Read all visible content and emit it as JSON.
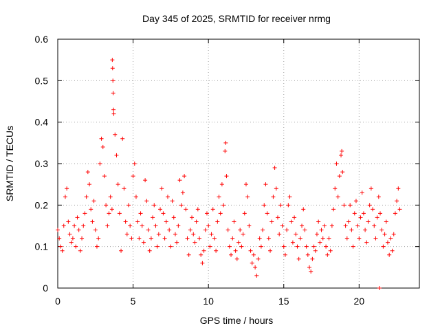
{
  "chart_data": {
    "type": "scatter",
    "title": "Day 345 of 2025, SRMTID for receiver nrmg",
    "xlabel": "GPS time / hours",
    "ylabel": "SRMTID / TECUs",
    "xlim": [
      0,
      24
    ],
    "ylim": [
      0,
      0.6
    ],
    "xticks": [
      0,
      5,
      10,
      15,
      20
    ],
    "yticks": [
      0,
      0.1,
      0.2,
      0.3,
      0.4,
      0.5,
      0.6
    ],
    "xtick_labels": [
      "0",
      "5",
      "10",
      "15",
      "20"
    ],
    "ytick_labels": [
      "0",
      "0.1",
      "0.2",
      "0.3",
      "0.4",
      "0.5",
      "0.6"
    ],
    "grid": true,
    "marker": "+",
    "color": "#ff0000",
    "series": [
      {
        "name": "SRMTID",
        "points": [
          [
            0.0,
            0.14
          ],
          [
            0.1,
            0.12
          ],
          [
            0.2,
            0.1
          ],
          [
            0.3,
            0.09
          ],
          [
            0.4,
            0.15
          ],
          [
            0.5,
            0.22
          ],
          [
            0.6,
            0.24
          ],
          [
            0.7,
            0.16
          ],
          [
            0.8,
            0.13
          ],
          [
            0.9,
            0.11
          ],
          [
            1.0,
            0.12
          ],
          [
            1.1,
            0.15
          ],
          [
            1.2,
            0.1
          ],
          [
            1.3,
            0.17
          ],
          [
            1.4,
            0.14
          ],
          [
            1.5,
            0.09
          ],
          [
            1.6,
            0.12
          ],
          [
            1.7,
            0.15
          ],
          [
            1.8,
            0.18
          ],
          [
            1.9,
            0.22
          ],
          [
            2.0,
            0.28
          ],
          [
            2.1,
            0.25
          ],
          [
            2.2,
            0.19
          ],
          [
            2.3,
            0.16
          ],
          [
            2.4,
            0.21
          ],
          [
            2.5,
            0.14
          ],
          [
            2.6,
            0.1
          ],
          [
            2.7,
            0.12
          ],
          [
            2.8,
            0.3
          ],
          [
            2.9,
            0.36
          ],
          [
            3.0,
            0.34
          ],
          [
            3.1,
            0.27
          ],
          [
            3.2,
            0.2
          ],
          [
            3.3,
            0.15
          ],
          [
            3.4,
            0.18
          ],
          [
            3.5,
            0.22
          ],
          [
            3.6,
            0.19
          ],
          [
            3.62,
            0.55
          ],
          [
            3.64,
            0.53
          ],
          [
            3.66,
            0.5
          ],
          [
            3.68,
            0.47
          ],
          [
            3.7,
            0.43
          ],
          [
            3.72,
            0.42
          ],
          [
            3.8,
            0.37
          ],
          [
            3.9,
            0.32
          ],
          [
            4.0,
            0.25
          ],
          [
            4.1,
            0.18
          ],
          [
            4.2,
            0.09
          ],
          [
            4.3,
            0.36
          ],
          [
            4.4,
            0.24
          ],
          [
            4.5,
            0.16
          ],
          [
            4.6,
            0.13
          ],
          [
            4.7,
            0.2
          ],
          [
            4.8,
            0.15
          ],
          [
            4.9,
            0.12
          ],
          [
            5.0,
            0.27
          ],
          [
            5.1,
            0.3
          ],
          [
            5.2,
            0.22
          ],
          [
            5.3,
            0.16
          ],
          [
            5.4,
            0.12
          ],
          [
            5.5,
            0.18
          ],
          [
            5.6,
            0.15
          ],
          [
            5.7,
            0.11
          ],
          [
            5.8,
            0.26
          ],
          [
            5.9,
            0.21
          ],
          [
            6.0,
            0.14
          ],
          [
            6.1,
            0.09
          ],
          [
            6.2,
            0.12
          ],
          [
            6.3,
            0.17
          ],
          [
            6.4,
            0.2
          ],
          [
            6.5,
            0.15
          ],
          [
            6.6,
            0.1
          ],
          [
            6.7,
            0.13
          ],
          [
            6.8,
            0.19
          ],
          [
            6.9,
            0.24
          ],
          [
            7.0,
            0.18
          ],
          [
            7.1,
            0.12
          ],
          [
            7.2,
            0.16
          ],
          [
            7.3,
            0.22
          ],
          [
            7.4,
            0.14
          ],
          [
            7.5,
            0.1
          ],
          [
            7.6,
            0.21
          ],
          [
            7.7,
            0.17
          ],
          [
            7.8,
            0.13
          ],
          [
            7.9,
            0.11
          ],
          [
            8.0,
            0.15
          ],
          [
            8.1,
            0.26
          ],
          [
            8.2,
            0.2
          ],
          [
            8.3,
            0.23
          ],
          [
            8.4,
            0.27
          ],
          [
            8.5,
            0.19
          ],
          [
            8.6,
            0.12
          ],
          [
            8.7,
            0.08
          ],
          [
            8.8,
            0.14
          ],
          [
            8.9,
            0.17
          ],
          [
            9.0,
            0.13
          ],
          [
            9.1,
            0.11
          ],
          [
            9.2,
            0.16
          ],
          [
            9.3,
            0.19
          ],
          [
            9.4,
            0.12
          ],
          [
            9.5,
            0.08
          ],
          [
            9.6,
            0.06
          ],
          [
            9.7,
            0.09
          ],
          [
            9.8,
            0.14
          ],
          [
            9.9,
            0.18
          ],
          [
            10.0,
            0.15
          ],
          [
            10.1,
            0.1
          ],
          [
            10.2,
            0.13
          ],
          [
            10.3,
            0.19
          ],
          [
            10.4,
            0.12
          ],
          [
            10.5,
            0.09
          ],
          [
            10.6,
            0.16
          ],
          [
            10.7,
            0.22
          ],
          [
            10.8,
            0.18
          ],
          [
            10.9,
            0.25
          ],
          [
            11.0,
            0.2
          ],
          [
            11.1,
            0.33
          ],
          [
            11.15,
            0.35
          ],
          [
            11.2,
            0.27
          ],
          [
            11.3,
            0.14
          ],
          [
            11.4,
            0.1
          ],
          [
            11.5,
            0.08
          ],
          [
            11.6,
            0.12
          ],
          [
            11.7,
            0.16
          ],
          [
            11.8,
            0.09
          ],
          [
            11.9,
            0.07
          ],
          [
            12.0,
            0.11
          ],
          [
            12.1,
            0.14
          ],
          [
            12.2,
            0.1
          ],
          [
            12.3,
            0.13
          ],
          [
            12.4,
            0.18
          ],
          [
            12.5,
            0.25
          ],
          [
            12.6,
            0.22
          ],
          [
            12.7,
            0.15
          ],
          [
            12.8,
            0.09
          ],
          [
            12.9,
            0.06
          ],
          [
            13.0,
            0.08
          ],
          [
            13.1,
            0.05
          ],
          [
            13.2,
            0.03
          ],
          [
            13.3,
            0.07
          ],
          [
            13.4,
            0.12
          ],
          [
            13.5,
            0.1
          ],
          [
            13.6,
            0.14
          ],
          [
            13.7,
            0.2
          ],
          [
            13.8,
            0.25
          ],
          [
            13.9,
            0.18
          ],
          [
            14.0,
            0.12
          ],
          [
            14.1,
            0.09
          ],
          [
            14.2,
            0.16
          ],
          [
            14.3,
            0.22
          ],
          [
            14.4,
            0.29
          ],
          [
            14.5,
            0.24
          ],
          [
            14.6,
            0.17
          ],
          [
            14.7,
            0.13
          ],
          [
            14.8,
            0.2
          ],
          [
            14.9,
            0.15
          ],
          [
            15.0,
            0.1
          ],
          [
            15.1,
            0.08
          ],
          [
            15.2,
            0.14
          ],
          [
            15.3,
            0.2
          ],
          [
            15.4,
            0.22
          ],
          [
            15.5,
            0.16
          ],
          [
            15.6,
            0.11
          ],
          [
            15.7,
            0.17
          ],
          [
            15.8,
            0.13
          ],
          [
            15.9,
            0.1
          ],
          [
            16.0,
            0.07
          ],
          [
            16.1,
            0.12
          ],
          [
            16.2,
            0.15
          ],
          [
            16.3,
            0.19
          ],
          [
            16.4,
            0.14
          ],
          [
            16.5,
            0.1
          ],
          [
            16.6,
            0.08
          ],
          [
            16.7,
            0.05
          ],
          [
            16.8,
            0.04
          ],
          [
            16.9,
            0.07
          ],
          [
            17.0,
            0.1
          ],
          [
            17.1,
            0.09
          ],
          [
            17.2,
            0.13
          ],
          [
            17.3,
            0.16
          ],
          [
            17.4,
            0.11
          ],
          [
            17.5,
            0.14
          ],
          [
            17.6,
            0.12
          ],
          [
            17.7,
            0.15
          ],
          [
            17.8,
            0.1
          ],
          [
            17.9,
            0.08
          ],
          [
            18.0,
            0.12
          ],
          [
            18.1,
            0.09
          ],
          [
            18.2,
            0.15
          ],
          [
            18.3,
            0.19
          ],
          [
            18.4,
            0.24
          ],
          [
            18.5,
            0.3
          ],
          [
            18.6,
            0.22
          ],
          [
            18.7,
            0.27
          ],
          [
            18.8,
            0.32
          ],
          [
            18.85,
            0.33
          ],
          [
            18.9,
            0.28
          ],
          [
            19.0,
            0.2
          ],
          [
            19.1,
            0.15
          ],
          [
            19.2,
            0.12
          ],
          [
            19.3,
            0.16
          ],
          [
            19.4,
            0.2
          ],
          [
            19.5,
            0.14
          ],
          [
            19.6,
            0.1
          ],
          [
            19.7,
            0.18
          ],
          [
            19.8,
            0.21
          ],
          [
            19.9,
            0.15
          ],
          [
            20.0,
            0.12
          ],
          [
            20.1,
            0.17
          ],
          [
            20.2,
            0.23
          ],
          [
            20.3,
            0.18
          ],
          [
            20.4,
            0.14
          ],
          [
            20.5,
            0.11
          ],
          [
            20.6,
            0.16
          ],
          [
            20.7,
            0.2
          ],
          [
            20.8,
            0.24
          ],
          [
            20.9,
            0.19
          ],
          [
            21.0,
            0.15
          ],
          [
            21.1,
            0.12
          ],
          [
            21.2,
            0.17
          ],
          [
            21.3,
            0.22
          ],
          [
            21.35,
            0.0
          ],
          [
            21.4,
            0.18
          ],
          [
            21.5,
            0.14
          ],
          [
            21.6,
            0.1
          ],
          [
            21.7,
            0.13
          ],
          [
            21.8,
            0.16
          ],
          [
            21.9,
            0.11
          ],
          [
            22.0,
            0.08
          ],
          [
            22.1,
            0.12
          ],
          [
            22.2,
            0.09
          ],
          [
            22.3,
            0.13
          ],
          [
            22.4,
            0.18
          ],
          [
            22.5,
            0.21
          ],
          [
            22.6,
            0.24
          ],
          [
            22.7,
            0.19
          ]
        ]
      }
    ]
  }
}
